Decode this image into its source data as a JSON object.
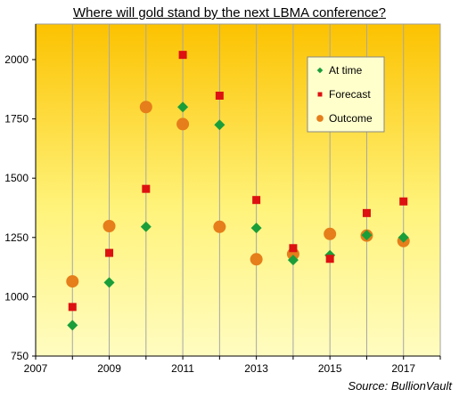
{
  "chart_data": {
    "type": "scatter",
    "title": "Where will gold stand by the next LBMA conference?",
    "xlabel": "",
    "ylabel": "",
    "xlim": [
      2007,
      2018
    ],
    "ylim": [
      750,
      2150
    ],
    "x_ticks": [
      "2007",
      "2009",
      "2011",
      "2013",
      "2015",
      "2017"
    ],
    "y_ticks": [
      "750",
      "1000",
      "1250",
      "1500",
      "1750",
      "2000"
    ],
    "grid": "vertical",
    "legend_position": "top-right",
    "series": [
      {
        "name": "At time",
        "marker": "diamond",
        "color": "#1a9e3a",
        "points": [
          {
            "x": 2008,
            "y": 880
          },
          {
            "x": 2009,
            "y": 1060
          },
          {
            "x": 2010,
            "y": 1295
          },
          {
            "x": 2011,
            "y": 1800
          },
          {
            "x": 2012,
            "y": 1725
          },
          {
            "x": 2013,
            "y": 1290
          },
          {
            "x": 2014,
            "y": 1155
          },
          {
            "x": 2015,
            "y": 1175
          },
          {
            "x": 2016,
            "y": 1260
          },
          {
            "x": 2017,
            "y": 1250
          }
        ]
      },
      {
        "name": "Forecast",
        "marker": "square",
        "color": "#dd1111",
        "points": [
          {
            "x": 2008,
            "y": 957
          },
          {
            "x": 2009,
            "y": 1185
          },
          {
            "x": 2010,
            "y": 1455
          },
          {
            "x": 2011,
            "y": 2020
          },
          {
            "x": 2012,
            "y": 1848
          },
          {
            "x": 2013,
            "y": 1408
          },
          {
            "x": 2014,
            "y": 1205
          },
          {
            "x": 2015,
            "y": 1160
          },
          {
            "x": 2016,
            "y": 1353
          },
          {
            "x": 2017,
            "y": 1402
          }
        ]
      },
      {
        "name": "Outcome",
        "marker": "circle",
        "color": "#e57e1b",
        "points": [
          {
            "x": 2008,
            "y": 1065
          },
          {
            "x": 2009,
            "y": 1298
          },
          {
            "x": 2010,
            "y": 1800
          },
          {
            "x": 2011,
            "y": 1728
          },
          {
            "x": 2012,
            "y": 1295
          },
          {
            "x": 2013,
            "y": 1158
          },
          {
            "x": 2014,
            "y": 1180
          },
          {
            "x": 2015,
            "y": 1265
          },
          {
            "x": 2016,
            "y": 1258
          },
          {
            "x": 2017,
            "y": 1235
          }
        ]
      }
    ],
    "source": "Source:  BullionVault"
  }
}
